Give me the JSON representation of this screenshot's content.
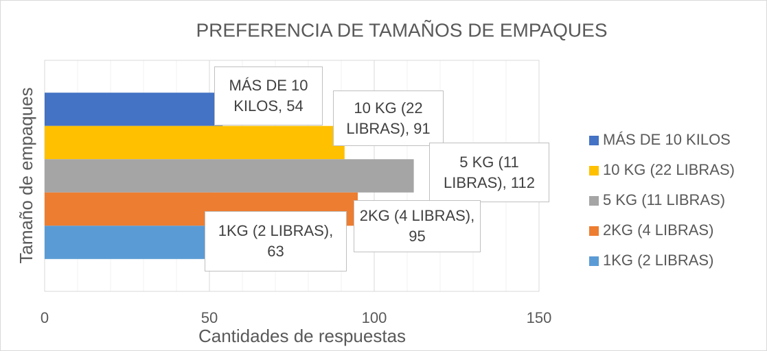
{
  "chart_data": {
    "type": "bar",
    "orientation": "horizontal",
    "title": "PREFERENCIA DE TAMAÑOS DE EMPAQUES",
    "x_label": "Cantidades de respuestas",
    "y_label": "Tamaño de empaques",
    "categories": [
      null
    ],
    "series": [
      {
        "name": "MÁS DE 10 KILOS",
        "color": "#4472c4",
        "values": [
          54
        ],
        "value_labels": [
          "MÁS DE 10 KILOS, 54"
        ]
      },
      {
        "name": "10 KG (22 LIBRAS)",
        "color": "#ffc000",
        "values": [
          91
        ],
        "value_labels": [
          "10 KG (22 LIBRAS), 91"
        ]
      },
      {
        "name": "5 KG (11 LIBRAS)",
        "color": "#a5a5a5",
        "values": [
          112
        ],
        "value_labels": [
          "5 KG (11 LIBRAS), 112"
        ]
      },
      {
        "name": "2KG (4 LIBRAS)",
        "color": "#ed7d31",
        "values": [
          95
        ],
        "value_labels": [
          "2KG (4 LIBRAS), 95"
        ]
      },
      {
        "name": "1KG (2 LIBRAS)",
        "color": "#5b9bd5",
        "values": [
          63
        ],
        "value_labels": [
          "1KG (2 LIBRAS), 63"
        ]
      }
    ],
    "xlim": [
      0,
      150
    ],
    "xticks": [
      0,
      50,
      100,
      150
    ],
    "x_minor_ticks": [
      10,
      20,
      30,
      40,
      60,
      70,
      80,
      90,
      110,
      120,
      130,
      140
    ],
    "grid": true,
    "legend": "right"
  }
}
